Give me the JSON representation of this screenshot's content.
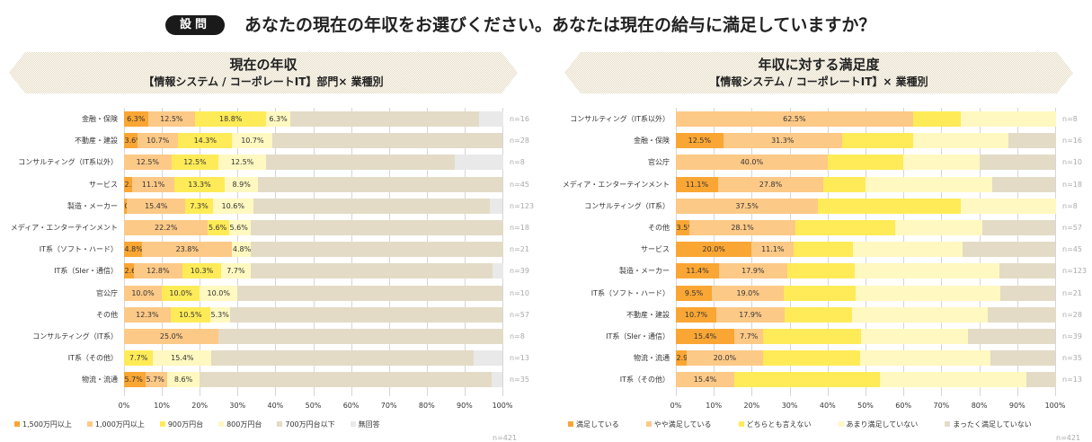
{
  "question": {
    "badge": "設問",
    "text": "あなたの現在の年収をお選びください。あなたは現在の給与に満足していますか？"
  },
  "colors": {
    "c1": "#FAA634",
    "c2": "#FDC987",
    "c3": "#FFEB57",
    "c4": "#FFF8C0",
    "c5": "#E3DBC6",
    "c6": "#E9E9E9"
  },
  "chart_data": [
    {
      "type": "bar",
      "orientation": "horizontal-stacked-100",
      "title": "現在の年収",
      "subtitle": "【情報システム / コーポレートIT】部門× 業種別",
      "xlim": [
        0,
        100
      ],
      "xticks": [
        "0%",
        "10%",
        "20%",
        "30%",
        "40%",
        "50%",
        "60%",
        "70%",
        "80%",
        "90%",
        "100%"
      ],
      "total_n": "n=421",
      "legend_position": "bottom-left",
      "series": [
        {
          "name": "1,500万円以上",
          "color": "#FAA634"
        },
        {
          "name": "1,000万円以上",
          "color": "#FDC987"
        },
        {
          "name": "900万円台",
          "color": "#FFEB57"
        },
        {
          "name": "800万円台",
          "color": "#FFF8C0"
        },
        {
          "name": "700万円台以下",
          "color": "#E3DBC6"
        },
        {
          "name": "無回答",
          "color": "#E9E9E9"
        }
      ],
      "rows": [
        {
          "category": "金融・保険",
          "n": "n=16",
          "values": [
            6.3,
            12.5,
            18.8,
            6.3,
            50.0,
            6.3
          ],
          "labels": [
            "6.3%",
            "12.5%",
            "18.8%",
            "6.3%",
            "",
            ""
          ]
        },
        {
          "category": "不動産・建設",
          "n": "n=28",
          "values": [
            3.6,
            10.7,
            14.3,
            10.7,
            60.7,
            0
          ],
          "labels": [
            "3.6%",
            "10.7%",
            "14.3%",
            "10.7%",
            "",
            ""
          ]
        },
        {
          "category": "コンサルティング（IT系以外）",
          "n": "n=8",
          "values": [
            0,
            12.5,
            12.5,
            12.5,
            50.0,
            12.5
          ],
          "labels": [
            "",
            "12.5%",
            "12.5%",
            "12.5%",
            "",
            ""
          ]
        },
        {
          "category": "サービス",
          "n": "n=45",
          "values": [
            2.2,
            11.1,
            13.3,
            8.9,
            64.4,
            0
          ],
          "labels": [
            "2.2%",
            "11.1%",
            "13.3%",
            "8.9%",
            "",
            ""
          ]
        },
        {
          "category": "製造・メーカー",
          "n": "n=123",
          "values": [
            0.8,
            15.4,
            7.3,
            10.6,
            62.6,
            3.3
          ],
          "labels": [
            "0.8%",
            "15.4%",
            "7.3%",
            "10.6%",
            "",
            ""
          ]
        },
        {
          "category": "メディア・エンターテインメント",
          "n": "n=18",
          "values": [
            0,
            22.2,
            5.6,
            5.6,
            66.7,
            0
          ],
          "labels": [
            "",
            "22.2%",
            "5.6%",
            "5.6%",
            "",
            ""
          ]
        },
        {
          "category": "IT系（ソフト・ハード）",
          "n": "n=21",
          "values": [
            4.8,
            23.8,
            0,
            4.8,
            66.7,
            0
          ],
          "labels": [
            "4.8%",
            "23.8%",
            "",
            "4.8%",
            "",
            ""
          ]
        },
        {
          "category": "IT系（SIer・通信）",
          "n": "n=39",
          "values": [
            2.6,
            12.8,
            10.3,
            7.7,
            64.1,
            2.6
          ],
          "labels": [
            "2.6%",
            "12.8%",
            "10.3%",
            "7.7%",
            "",
            ""
          ]
        },
        {
          "category": "官公庁",
          "n": "n=10",
          "values": [
            0,
            10.0,
            10.0,
            10.0,
            70.0,
            0
          ],
          "labels": [
            "",
            "10.0%",
            "10.0%",
            "10.0%",
            "",
            ""
          ]
        },
        {
          "category": "その他",
          "n": "n=57",
          "values": [
            0,
            12.3,
            10.5,
            5.3,
            71.9,
            0
          ],
          "labels": [
            "",
            "12.3%",
            "10.5%",
            "5.3%",
            "",
            ""
          ]
        },
        {
          "category": "コンサルティング（IT系）",
          "n": "n=8",
          "values": [
            0,
            25.0,
            0,
            0,
            75.0,
            0
          ],
          "labels": [
            "",
            "25.0%",
            "",
            "",
            "",
            ""
          ]
        },
        {
          "category": "IT系（その他）",
          "n": "n=13",
          "values": [
            0,
            0,
            7.7,
            15.4,
            69.2,
            7.7
          ],
          "labels": [
            "",
            "",
            "7.7%",
            "15.4%",
            "",
            ""
          ]
        },
        {
          "category": "物流・流通",
          "n": "n=35",
          "values": [
            5.7,
            5.7,
            0,
            8.6,
            77.1,
            2.9
          ],
          "labels": [
            "5.7%",
            "5.7%",
            "",
            "8.6%",
            "",
            ""
          ]
        }
      ]
    },
    {
      "type": "bar",
      "orientation": "horizontal-stacked-100",
      "title": "年収に対する満足度",
      "subtitle": "【情報システム / コーポレートIT】× 業種別",
      "xlim": [
        0,
        100
      ],
      "xticks": [
        "0%",
        "10%",
        "20%",
        "30%",
        "40%",
        "50%",
        "60%",
        "70%",
        "80%",
        "90%",
        "100%"
      ],
      "total_n": "n=421",
      "legend_position": "bottom-left",
      "series": [
        {
          "name": "満足している",
          "color": "#FAA634"
        },
        {
          "name": "やや満足している",
          "color": "#FDC987"
        },
        {
          "name": "どちらとも言えない",
          "color": "#FFEB57"
        },
        {
          "name": "あまり満足していない",
          "color": "#FFF8C0"
        },
        {
          "name": "まったく満足していない",
          "color": "#E3DBC6"
        }
      ],
      "rows": [
        {
          "category": "コンサルティング（IT系以外）",
          "n": "n=8",
          "values": [
            0,
            62.5,
            12.5,
            25.0,
            0
          ],
          "labels": [
            "",
            "62.5%",
            "",
            "",
            ""
          ]
        },
        {
          "category": "金融・保険",
          "n": "n=16",
          "values": [
            12.5,
            31.3,
            18.8,
            25.0,
            12.5
          ],
          "labels": [
            "12.5%",
            "31.3%",
            "",
            "",
            ""
          ]
        },
        {
          "category": "官公庁",
          "n": "n=10",
          "values": [
            0,
            40.0,
            20.0,
            20.0,
            20.0
          ],
          "labels": [
            "",
            "40.0%",
            "",
            "",
            ""
          ]
        },
        {
          "category": "メディア・エンターテインメント",
          "n": "n=18",
          "values": [
            11.1,
            27.8,
            11.1,
            33.3,
            16.7
          ],
          "labels": [
            "11.1%",
            "27.8%",
            "",
            "",
            ""
          ]
        },
        {
          "category": "コンサルティング（IT系）",
          "n": "n=8",
          "values": [
            0,
            37.5,
            37.5,
            25.0,
            0
          ],
          "labels": [
            "",
            "37.5%",
            "",
            "",
            ""
          ]
        },
        {
          "category": "その他",
          "n": "n=57",
          "values": [
            3.5,
            28.1,
            26.3,
            22.8,
            19.3
          ],
          "labels": [
            "3.5%",
            "28.1%",
            "",
            "",
            ""
          ]
        },
        {
          "category": "サービス",
          "n": "n=45",
          "values": [
            20.0,
            11.1,
            15.6,
            28.9,
            24.4
          ],
          "labels": [
            "20.0%",
            "11.1%",
            "",
            "",
            ""
          ]
        },
        {
          "category": "製造・メーカー",
          "n": "n=123",
          "values": [
            11.4,
            17.9,
            17.9,
            38.2,
            14.6
          ],
          "labels": [
            "11.4%",
            "17.9%",
            "",
            "",
            ""
          ]
        },
        {
          "category": "IT系（ソフト・ハード）",
          "n": "n=21",
          "values": [
            9.5,
            19.0,
            19.0,
            38.1,
            14.3
          ],
          "labels": [
            "9.5%",
            "19.0%",
            "",
            "",
            ""
          ]
        },
        {
          "category": "不動産・建設",
          "n": "n=28",
          "values": [
            10.7,
            17.9,
            17.9,
            35.7,
            17.9
          ],
          "labels": [
            "10.7%",
            "17.9%",
            "",
            "",
            ""
          ]
        },
        {
          "category": "IT系（SIer・通信）",
          "n": "n=39",
          "values": [
            15.4,
            7.7,
            25.6,
            28.2,
            23.1
          ],
          "labels": [
            "15.4%",
            "7.7%",
            "",
            "",
            ""
          ]
        },
        {
          "category": "物流・流通",
          "n": "n=35",
          "values": [
            2.9,
            20.0,
            25.7,
            34.3,
            17.1
          ],
          "labels": [
            "2.9%",
            "20.0%",
            "",
            "",
            ""
          ]
        },
        {
          "category": "IT系（その他）",
          "n": "n=13",
          "values": [
            0,
            15.4,
            38.5,
            38.5,
            7.7
          ],
          "labels": [
            "",
            "15.4%",
            "",
            "",
            ""
          ]
        }
      ]
    }
  ]
}
